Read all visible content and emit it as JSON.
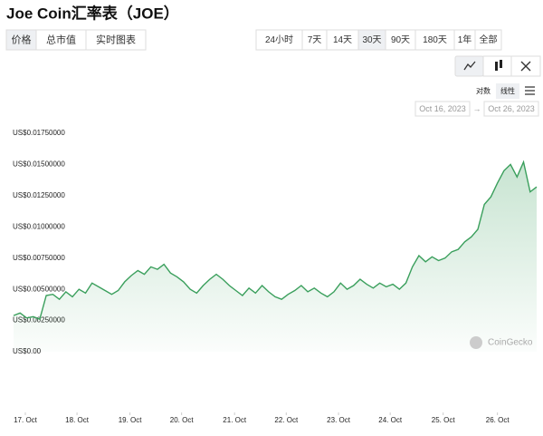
{
  "header": {
    "title": "Joe Coin汇率表（JOE）"
  },
  "tabs": [
    "价格",
    "总市值",
    "实时图表"
  ],
  "ranges": [
    "24小时",
    "7天",
    "14天",
    "30天",
    "90天",
    "180天",
    "1年",
    "全部"
  ],
  "scale_options": [
    "对数",
    "线性"
  ],
  "date_range": [
    "Oct 16, 2023",
    "Oct 26, 2023"
  ],
  "watermark": "CoinGecko",
  "chart_data": {
    "type": "line",
    "color": "#3a9f5c",
    "grid": false,
    "values": [
      0.0029,
      0.0031,
      0.0027,
      0.0028,
      0.0026,
      0.0045,
      0.0046,
      0.0042,
      0.0048,
      0.0044,
      0.005,
      0.0047,
      0.0055,
      0.0052,
      0.0049,
      0.0046,
      0.0049,
      0.0056,
      0.0061,
      0.0065,
      0.0062,
      0.0068,
      0.0066,
      0.007,
      0.0063,
      0.006,
      0.0056,
      0.005,
      0.0047,
      0.0053,
      0.0058,
      0.0062,
      0.0058,
      0.0053,
      0.0049,
      0.0045,
      0.0051,
      0.0047,
      0.0053,
      0.0048,
      0.0044,
      0.0042,
      0.0046,
      0.0049,
      0.0053,
      0.0048,
      0.0051,
      0.0047,
      0.0044,
      0.0048,
      0.0055,
      0.005,
      0.0053,
      0.0058,
      0.0054,
      0.0051,
      0.0055,
      0.0052,
      0.0054,
      0.005,
      0.0055,
      0.0068,
      0.0077,
      0.0072,
      0.0076,
      0.0073,
      0.0075,
      0.008,
      0.0082,
      0.0088,
      0.0092,
      0.0098,
      0.0118,
      0.0124,
      0.0135,
      0.0145,
      0.015,
      0.014,
      0.0152,
      0.0128,
      0.0132
    ],
    "xlim": [
      0,
      80
    ],
    "xticks": [
      {
        "value": 1.8,
        "label": "17. Oct"
      },
      {
        "value": 9.7,
        "label": "18. Oct"
      },
      {
        "value": 17.8,
        "label": "19. Oct"
      },
      {
        "value": 25.7,
        "label": "20. Oct"
      },
      {
        "value": 33.8,
        "label": "21. Oct"
      },
      {
        "value": 41.7,
        "label": "22. Oct"
      },
      {
        "value": 49.7,
        "label": "23. Oct"
      },
      {
        "value": 57.6,
        "label": "24. Oct"
      },
      {
        "value": 65.7,
        "label": "25. Oct"
      },
      {
        "value": 74,
        "label": "26. Oct"
      }
    ],
    "ylim": [
      0,
      0.0175
    ],
    "yticks": [
      {
        "value": 0,
        "label": "US$0.00"
      },
      {
        "value": 0.0025,
        "label": "US$0.00250000"
      },
      {
        "value": 0.005,
        "label": "US$0.00500000"
      },
      {
        "value": 0.0075,
        "label": "US$0.00750000"
      },
      {
        "value": 0.01,
        "label": "US$0.01000000"
      },
      {
        "value": 0.0125,
        "label": "US$0.01250000"
      },
      {
        "value": 0.015,
        "label": "US$0.01500000"
      },
      {
        "value": 0.0175,
        "label": "US$0.01750000"
      }
    ]
  }
}
